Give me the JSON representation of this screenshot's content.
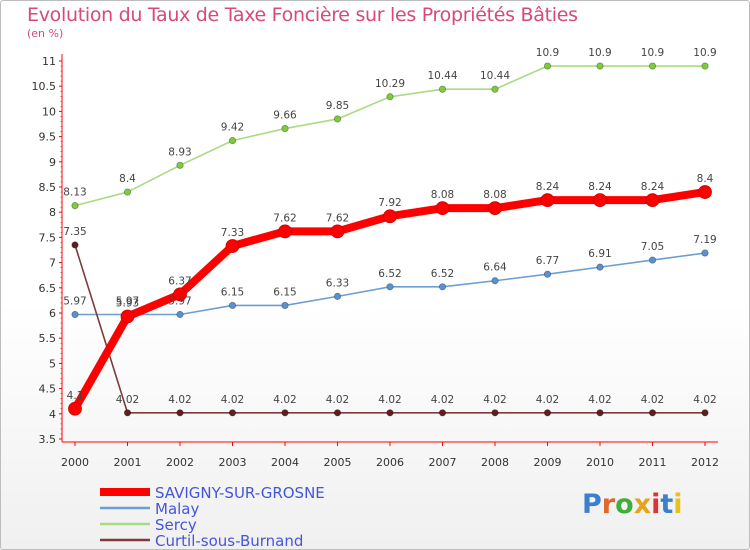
{
  "title": "Evolution du Taux de Taxe Foncière sur les Propriétés Bâties",
  "subtitle": "(en %)",
  "logo_text": "Proxiti",
  "logo_colors": [
    "#3a7fd0",
    "#e0682a",
    "#3fae3a",
    "#e8a31c",
    "#d33",
    "#3a7fd0",
    "#e8c21c"
  ],
  "chart_data": {
    "type": "line",
    "x": [
      "2000",
      "2001",
      "2002",
      "2003",
      "2004",
      "2005",
      "2006",
      "2007",
      "2008",
      "2009",
      "2010",
      "2011",
      "2012"
    ],
    "ylim": [
      3.5,
      11
    ],
    "yticks": [
      "3.5",
      "4",
      "4.5",
      "5",
      "5.5",
      "6",
      "6.5",
      "7",
      "7.5",
      "8",
      "8.5",
      "9",
      "9.5",
      "10",
      "10.5",
      "11"
    ],
    "grid": false,
    "series": [
      {
        "name": "SAVIGNY-SUR-GROSNE",
        "color": "#ff0000",
        "marker_color": "#ff0000",
        "values": [
          4.1,
          5.93,
          6.37,
          7.33,
          7.62,
          7.62,
          7.92,
          8.08,
          8.08,
          8.24,
          8.24,
          8.24,
          8.4
        ],
        "labels": [
          "4.1",
          "5.93",
          "6.37",
          "7.33",
          "7.62",
          "7.62",
          "7.92",
          "8.08",
          "8.08",
          "8.24",
          "8.24",
          "8.24",
          "8.4"
        ]
      },
      {
        "name": "Malay",
        "color": "#6c9fd0",
        "marker_color": "#5a92d0",
        "values": [
          5.97,
          5.97,
          5.97,
          6.15,
          6.15,
          6.33,
          6.52,
          6.52,
          6.64,
          6.77,
          6.91,
          7.05,
          7.19
        ],
        "labels": [
          "5.97",
          "5.97",
          "5.97",
          "6.15",
          "6.15",
          "6.33",
          "6.52",
          "6.52",
          "6.64",
          "6.77",
          "6.91",
          "7.05",
          "7.19"
        ]
      },
      {
        "name": "Sercy",
        "color": "#a9db82",
        "marker_color": "#7ccc3c",
        "values": [
          8.13,
          8.4,
          8.93,
          9.42,
          9.66,
          9.85,
          10.29,
          10.44,
          10.44,
          10.9,
          10.9,
          10.9,
          10.9
        ],
        "labels": [
          "8.13",
          "8.4",
          "8.93",
          "9.42",
          "9.66",
          "9.85",
          "10.29",
          "10.44",
          "10.44",
          "10.9",
          "10.9",
          "10.9",
          "10.9"
        ]
      },
      {
        "name": "Curtil-sous-Burnand",
        "color": "#7d3b3b",
        "marker_color": "#5e1f1f",
        "values": [
          7.35,
          4.02,
          4.02,
          4.02,
          4.02,
          4.02,
          4.02,
          4.02,
          4.02,
          4.02,
          4.02,
          4.02,
          4.02
        ],
        "labels": [
          "7.35",
          "4.02",
          "4.02",
          "4.02",
          "4.02",
          "4.02",
          "4.02",
          "4.02",
          "4.02",
          "4.02",
          "4.02",
          "4.02",
          "4.02"
        ]
      }
    ],
    "legend": [
      "SAVIGNY-SUR-GROSNE",
      "Malay",
      "Sercy",
      "Curtil-sous-Burnand"
    ],
    "legend_position": "bottom-left"
  }
}
